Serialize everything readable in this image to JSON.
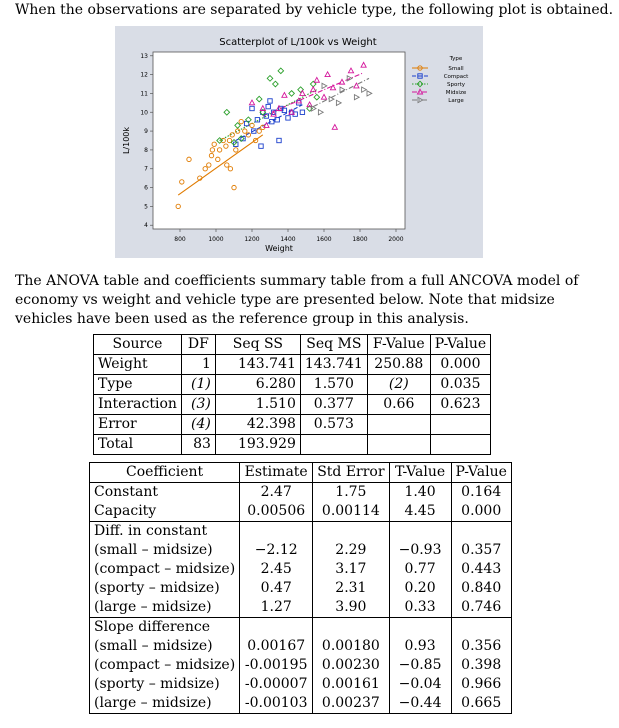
{
  "intro_text": "When the observations are separated by vehicle type, the following plot is obtained.",
  "paragraph": "The ANOVA table and coefficients summary table from a full ANCOVA model of economy vs weight and vehicle type are presented below. Note that midsize vehicles have been used as the reference group in this analysis.",
  "chart_data": {
    "type": "scatter",
    "title": "Scatterplot of L/100k vs Weight",
    "xlabel": "Weight",
    "ylabel": "L/100k",
    "xlim": [
      650,
      2050
    ],
    "ylim": [
      3.8,
      13.2
    ],
    "xticks": [
      "800",
      "1000",
      "1200",
      "1400",
      "1600",
      "1800",
      "2000"
    ],
    "yticks": [
      "4",
      "5",
      "6",
      "7",
      "8",
      "9",
      "10",
      "11",
      "12",
      "13"
    ],
    "legend_title": "Type",
    "legend_position": "right",
    "plot_background": "#ffffff",
    "panel_background": "#d9dde6",
    "series": [
      {
        "name": "Small",
        "marker": "circle",
        "color": "#e07b00",
        "line": "solid",
        "points": [
          [
            790,
            5
          ],
          [
            810,
            6.3
          ],
          [
            850,
            7.5
          ],
          [
            910,
            6.5
          ],
          [
            940,
            7
          ],
          [
            960,
            7.2
          ],
          [
            975,
            7.7
          ],
          [
            980,
            8
          ],
          [
            990,
            8.3
          ],
          [
            1010,
            7.5
          ],
          [
            1020,
            8
          ],
          [
            1040,
            8.5
          ],
          [
            1055,
            8.2
          ],
          [
            1060,
            7.2
          ],
          [
            1075,
            8.5
          ],
          [
            1080,
            7
          ],
          [
            1090,
            8.8
          ],
          [
            1100,
            6
          ],
          [
            1110,
            8
          ],
          [
            1120,
            9
          ],
          [
            1140,
            9.5
          ],
          [
            1160,
            9
          ],
          [
            1180,
            8.8
          ],
          [
            1200,
            9.3
          ],
          [
            1220,
            8.5
          ],
          [
            1240,
            9
          ],
          [
            1260,
            9.2
          ]
        ],
        "fit": [
          [
            790,
            5.6
          ],
          [
            1260,
            8.8
          ]
        ]
      },
      {
        "name": "Compact",
        "marker": "square",
        "color": "#1a3fcc",
        "line": "dashed",
        "points": [
          [
            1110,
            8.3
          ],
          [
            1150,
            8.6
          ],
          [
            1170,
            9.4
          ],
          [
            1200,
            10.2
          ],
          [
            1210,
            9
          ],
          [
            1230,
            9.6
          ],
          [
            1250,
            8.2
          ],
          [
            1260,
            10
          ],
          [
            1280,
            9.8
          ],
          [
            1290,
            10.3
          ],
          [
            1300,
            10.6
          ],
          [
            1310,
            9.5
          ],
          [
            1320,
            10
          ],
          [
            1340,
            9.6
          ],
          [
            1350,
            8.5
          ],
          [
            1360,
            10.2
          ],
          [
            1380,
            10.1
          ],
          [
            1400,
            9.7
          ],
          [
            1420,
            10
          ],
          [
            1440,
            9.9
          ],
          [
            1460,
            10.5
          ],
          [
            1480,
            10
          ]
        ],
        "fit": [
          [
            1110,
            8.5
          ],
          [
            1480,
            10.4
          ]
        ]
      },
      {
        "name": "Sporty",
        "marker": "diamond",
        "color": "#2ca02c",
        "line": "dotted",
        "points": [
          [
            1020,
            8.5
          ],
          [
            1060,
            10
          ],
          [
            1100,
            8.4
          ],
          [
            1120,
            9.3
          ],
          [
            1140,
            8.6
          ],
          [
            1180,
            9.6
          ],
          [
            1240,
            10.7
          ],
          [
            1260,
            10
          ],
          [
            1300,
            11.8
          ],
          [
            1330,
            11.5
          ],
          [
            1360,
            12.2
          ],
          [
            1420,
            11
          ],
          [
            1470,
            11.2
          ],
          [
            1520,
            10.2
          ],
          [
            1540,
            11.5
          ],
          [
            1560,
            10.8
          ]
        ],
        "fit": [
          [
            1020,
            8.5
          ],
          [
            1560,
            11.2
          ]
        ]
      },
      {
        "name": "Midsize",
        "marker": "triangle",
        "color": "#d4159b",
        "line": "dashdot",
        "points": [
          [
            1200,
            10.5
          ],
          [
            1260,
            10.2
          ],
          [
            1280,
            9.3
          ],
          [
            1320,
            9.9
          ],
          [
            1350,
            10.2
          ],
          [
            1380,
            10.9
          ],
          [
            1420,
            10
          ],
          [
            1460,
            10.6
          ],
          [
            1480,
            11
          ],
          [
            1520,
            10.4
          ],
          [
            1540,
            11.2
          ],
          [
            1560,
            11.7
          ],
          [
            1600,
            10.8
          ],
          [
            1620,
            12
          ],
          [
            1650,
            11.3
          ],
          [
            1660,
            9.2
          ],
          [
            1700,
            11.6
          ],
          [
            1750,
            12.2
          ],
          [
            1780,
            11.4
          ],
          [
            1820,
            12.5
          ]
        ],
        "fit": [
          [
            1260,
            9.8
          ],
          [
            1820,
            12.1
          ]
        ]
      },
      {
        "name": "Large",
        "marker": "triangle-right",
        "color": "#7a7a7a",
        "line": "dashdot",
        "points": [
          [
            1540,
            10.2
          ],
          [
            1580,
            10
          ],
          [
            1600,
            11.4
          ],
          [
            1640,
            10.7
          ],
          [
            1680,
            10.5
          ],
          [
            1700,
            11.2
          ],
          [
            1740,
            11.8
          ],
          [
            1780,
            10.8
          ],
          [
            1820,
            11.2
          ],
          [
            1850,
            11
          ]
        ],
        "fit": [
          [
            1540,
            10.3
          ],
          [
            1850,
            11.8
          ]
        ]
      }
    ]
  },
  "anova": {
    "headers": [
      "Source",
      "DF",
      "Seq SS",
      "Seq MS",
      "F-Value",
      "P-Value"
    ],
    "rows": [
      [
        "Weight",
        "1",
        "143.741",
        "143.741",
        "250.88",
        "0.000"
      ],
      [
        "Type",
        "(1)",
        "6.280",
        "1.570",
        "(2)",
        "0.035"
      ],
      [
        "Interaction",
        "(3)",
        "1.510",
        "0.377",
        "0.66",
        "0.623"
      ],
      [
        "Error",
        "(4)",
        "42.398",
        "0.573",
        "",
        ""
      ],
      [
        "Total",
        "83",
        "193.929",
        "",
        "",
        ""
      ]
    ]
  },
  "coef": {
    "headers": [
      "Coefficient",
      "Estimate",
      "Std Error",
      "T-Value",
      "P-Value"
    ],
    "rows": [
      [
        "Constant",
        "2.47",
        "1.75",
        "1.40",
        "0.164"
      ],
      [
        "Capacity",
        "0.00506",
        "0.00114",
        "4.45",
        "0.000"
      ],
      [
        "Diff. in constant",
        "",
        "",
        "",
        ""
      ],
      [
        "(small – midsize)",
        "−2.12",
        "2.29",
        "−0.93",
        "0.357"
      ],
      [
        "(compact – midsize)",
        "2.45",
        "3.17",
        "0.77",
        "0.443"
      ],
      [
        "(sporty – midsize)",
        "0.47",
        "2.31",
        "0.20",
        "0.840"
      ],
      [
        "(large – midsize)",
        "1.27",
        "3.90",
        "0.33",
        "0.746"
      ],
      [
        "Slope difference",
        "",
        "",
        "",
        ""
      ],
      [
        "(small – midsize)",
        "0.00167",
        "0.00180",
        "0.93",
        "0.356"
      ],
      [
        "(compact – midsize)",
        "-0.00195",
        "0.00230",
        "−0.85",
        "0.398"
      ],
      [
        "(sporty – midsize)",
        "-0.00007",
        "0.00161",
        "−0.04",
        "0.966"
      ],
      [
        "(large – midsize)",
        "-0.00103",
        "0.00237",
        "−0.44",
        "0.665"
      ]
    ]
  }
}
